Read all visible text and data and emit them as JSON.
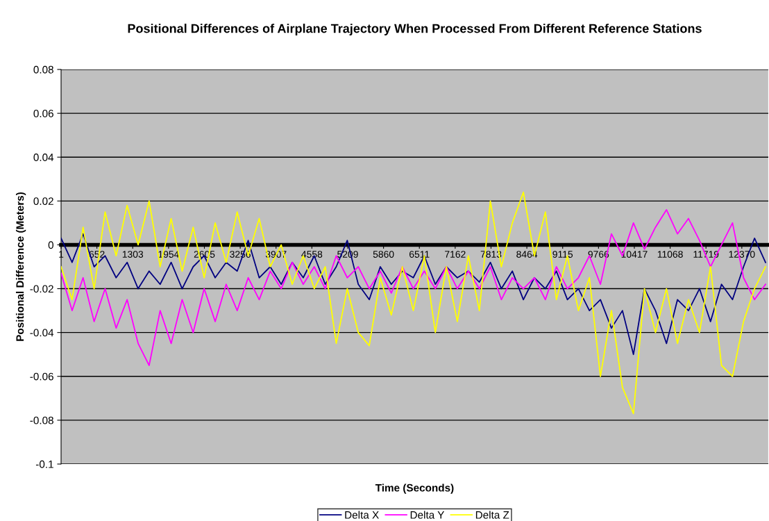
{
  "chart_data": {
    "type": "line",
    "title": "Positional Differences of Airplane Trajectory When Processed From Different Reference Stations",
    "xlabel": "Time (Seconds)",
    "ylabel": "Positional Difference (Meters)",
    "x": [
      1,
      201,
      401,
      601,
      801,
      1001,
      1201,
      1401,
      1601,
      1801,
      2001,
      2201,
      2401,
      2601,
      2801,
      3001,
      3201,
      3401,
      3601,
      3801,
      4001,
      4201,
      4401,
      4601,
      4801,
      5001,
      5201,
      5401,
      5601,
      5801,
      6001,
      6201,
      6401,
      6601,
      6801,
      7001,
      7201,
      7401,
      7601,
      7801,
      8001,
      8201,
      8401,
      8601,
      8801,
      9001,
      9201,
      9401,
      9601,
      9801,
      10001,
      10201,
      10401,
      10601,
      10801,
      11001,
      11201,
      11401,
      11601,
      11801,
      12001,
      12201,
      12401,
      12601,
      12801
    ],
    "series": [
      {
        "name": "Delta X",
        "color": "#000080",
        "values": [
          0.003,
          -0.008,
          0.005,
          -0.01,
          -0.005,
          -0.015,
          -0.008,
          -0.02,
          -0.012,
          -0.018,
          -0.008,
          -0.02,
          -0.01,
          -0.005,
          -0.015,
          -0.008,
          -0.012,
          0.002,
          -0.015,
          -0.01,
          -0.018,
          -0.008,
          -0.015,
          -0.005,
          -0.018,
          -0.01,
          0.002,
          -0.018,
          -0.025,
          -0.01,
          -0.018,
          -0.012,
          -0.015,
          -0.005,
          -0.018,
          -0.01,
          -0.015,
          -0.012,
          -0.017,
          -0.008,
          -0.02,
          -0.012,
          -0.025,
          -0.015,
          -0.02,
          -0.012,
          -0.025,
          -0.02,
          -0.03,
          -0.025,
          -0.038,
          -0.03,
          -0.05,
          -0.02,
          -0.03,
          -0.045,
          -0.025,
          -0.03,
          -0.02,
          -0.035,
          -0.018,
          -0.025,
          -0.01,
          0.003,
          -0.008
        ]
      },
      {
        "name": "Delta Y",
        "color": "#ff00ff",
        "values": [
          -0.013,
          -0.03,
          -0.015,
          -0.035,
          -0.02,
          -0.038,
          -0.025,
          -0.045,
          -0.055,
          -0.03,
          -0.045,
          -0.025,
          -0.04,
          -0.02,
          -0.035,
          -0.018,
          -0.03,
          -0.015,
          -0.025,
          -0.012,
          -0.02,
          -0.008,
          -0.018,
          -0.01,
          -0.02,
          -0.005,
          -0.015,
          -0.01,
          -0.02,
          -0.012,
          -0.022,
          -0.01,
          -0.02,
          -0.012,
          -0.02,
          -0.01,
          -0.02,
          -0.012,
          -0.02,
          -0.01,
          -0.025,
          -0.015,
          -0.02,
          -0.015,
          -0.025,
          -0.01,
          -0.02,
          -0.015,
          -0.005,
          -0.018,
          0.005,
          -0.005,
          0.01,
          -0.002,
          0.008,
          0.016,
          0.005,
          0.012,
          0.002,
          -0.01,
          0.0,
          0.01,
          -0.015,
          -0.025,
          -0.018
        ]
      },
      {
        "name": "Delta Z",
        "color": "#ffff00",
        "values": [
          -0.01,
          -0.025,
          0.008,
          -0.02,
          0.015,
          -0.005,
          0.018,
          0.0,
          0.02,
          -0.01,
          0.012,
          -0.012,
          0.008,
          -0.015,
          0.01,
          -0.008,
          0.015,
          -0.005,
          0.012,
          -0.01,
          0.0,
          -0.018,
          -0.005,
          -0.02,
          -0.01,
          -0.045,
          -0.02,
          -0.04,
          -0.046,
          -0.015,
          -0.032,
          -0.01,
          -0.03,
          -0.005,
          -0.04,
          -0.01,
          -0.035,
          -0.005,
          -0.03,
          0.02,
          -0.01,
          0.01,
          0.024,
          -0.005,
          0.015,
          -0.025,
          -0.005,
          -0.03,
          -0.015,
          -0.06,
          -0.03,
          -0.065,
          -0.077,
          -0.02,
          -0.04,
          -0.02,
          -0.045,
          -0.025,
          -0.04,
          -0.01,
          -0.055,
          -0.06,
          -0.035,
          -0.02,
          -0.01
        ]
      }
    ],
    "xlim": [
      1,
      12850
    ],
    "xticks": [
      1,
      652,
      1303,
      1954,
      2605,
      3256,
      3907,
      4558,
      5209,
      5860,
      6511,
      7162,
      7813,
      8464,
      9115,
      9766,
      10417,
      11068,
      11719,
      12370
    ],
    "ylim": [
      -0.1,
      0.08
    ],
    "yticks": [
      -0.1,
      -0.08,
      -0.06,
      -0.04,
      -0.02,
      0,
      0.02,
      0.04,
      0.06,
      0.08
    ],
    "grid": "y",
    "legend": "bottom"
  }
}
